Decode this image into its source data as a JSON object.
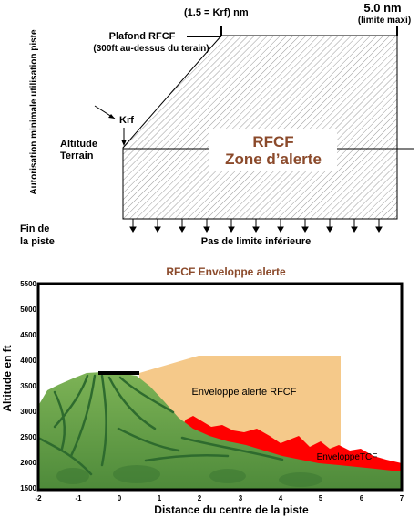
{
  "top_diagram": {
    "label_1_5_krf": "(1.5 = Krf) nm",
    "label_5nm": "5.0 nm",
    "label_limite_maxi": "(limite maxi)",
    "plafond_line1": "Plafond RFCF",
    "plafond_line2": "(300ft au-dessus du terain)",
    "y_axis_label": "Autorisation minimale utilisation piste",
    "krf_label": "Krf",
    "altitude_line1": "Altitude",
    "altitude_line2": "Terrain",
    "zone_line1": "RFCF",
    "zone_line2": "Zone d’alerte",
    "fin_line1": "Fin de",
    "fin_line2": "la piste",
    "pas_limite": "Pas de limite inférieure"
  },
  "bottom_chart": {
    "title": "RFCF Enveloppe alerte",
    "ylabel": "Altitude en ft",
    "xlabel": "Distance du centre de la piste",
    "y_ticks": [
      "5500",
      "5000",
      "4500",
      "4000",
      "3500",
      "3000",
      "2500",
      "2000",
      "1500"
    ],
    "x_ticks": [
      "-2",
      "-1",
      "0",
      "1",
      "2",
      "3",
      "4",
      "5",
      "6",
      "7"
    ],
    "label_rfcf_envelope": "Enveloppe alerte RFCF",
    "label_tcf_envelope": "EnveloppeTCF"
  },
  "colors": {
    "title": "#8B4A2B",
    "zone_text": "#8B4A2B",
    "rfcf_envelope": "#F5C98A",
    "tcf_envelope": "#FF0000",
    "terrain_dark": "#2E6B2E",
    "terrain_light": "#6FA04A"
  }
}
